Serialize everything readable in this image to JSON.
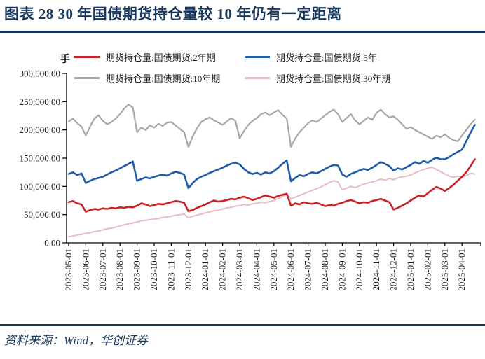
{
  "header": {
    "title": "图表 28  30 年国债期货持仓量较 10 年仍有一定距离"
  },
  "footer": {
    "source": "资料来源：Wind，华创证券"
  },
  "chart": {
    "unit_label": "手"
  },
  "colors": {
    "title_navy": "#17375C",
    "axis": "#000000"
  },
  "chart_data": {
    "type": "line",
    "title": "",
    "unit": "手",
    "xlabel": "",
    "ylabel": "",
    "grid": false,
    "legend_position": "top",
    "ylim": [
      0,
      300000
    ],
    "ytick_values": [
      0,
      50000,
      100000,
      150000,
      200000,
      250000,
      300000
    ],
    "ytick_labels": [
      "0.00",
      "50,000.00",
      "100,000.00",
      "150,000.00",
      "200,000.00",
      "250,000.00",
      "300,000.00"
    ],
    "x_tick_labels": [
      "2023-05-01",
      "2023-06-01",
      "2023-07-01",
      "2023-08-01",
      "2023-09-01",
      "2023-10-01",
      "2023-11-01",
      "2023-12-01",
      "2024-01-01",
      "2024-02-01",
      "2024-03-01",
      "2024-04-01",
      "2024-05-01",
      "2024-06-01",
      "2024-07-01",
      "2024-08-01",
      "2024-09-01",
      "2024-10-01",
      "2024-11-01",
      "2024-12-01",
      "2025-01-01",
      "2025-02-01",
      "2025-03-01",
      "2025-04-01"
    ],
    "points_per_month": 4,
    "series": [
      {
        "name": "期货持仓量:国债期货:2年期",
        "color": "#CB2026",
        "line_width": 2.6,
        "values": [
          72000,
          74000,
          70000,
          68000,
          55000,
          58000,
          60000,
          59000,
          61000,
          60000,
          62000,
          61000,
          63000,
          62000,
          64000,
          63000,
          66000,
          70000,
          68000,
          65000,
          67000,
          69000,
          68000,
          70000,
          72000,
          74000,
          73000,
          71000,
          56000,
          58000,
          62000,
          65000,
          68000,
          72000,
          75000,
          73000,
          74000,
          76000,
          78000,
          77000,
          80000,
          82000,
          79000,
          76000,
          78000,
          81000,
          84000,
          82000,
          80000,
          83000,
          85000,
          87000,
          66000,
          70000,
          68000,
          72000,
          70000,
          69000,
          71000,
          68000,
          65000,
          67000,
          66000,
          69000,
          71000,
          74000,
          76000,
          73000,
          70000,
          72000,
          71000,
          74000,
          76000,
          78000,
          75000,
          72000,
          59000,
          62000,
          66000,
          70000,
          75000,
          80000,
          84000,
          82000,
          88000,
          94000,
          99000,
          96000,
          92000,
          97000,
          103000,
          110000,
          117000,
          125000,
          136000,
          148000
        ]
      },
      {
        "name": "期货持仓量:国债期货:5年",
        "color": "#1F5CA9",
        "line_width": 2.6,
        "values": [
          122000,
          125000,
          120000,
          123000,
          106000,
          110000,
          113000,
          115000,
          117000,
          121000,
          125000,
          128000,
          132000,
          136000,
          140000,
          144000,
          110000,
          113000,
          116000,
          114000,
          117000,
          119000,
          121000,
          119000,
          123000,
          126000,
          124000,
          121000,
          97000,
          106000,
          113000,
          117000,
          120000,
          124000,
          127000,
          130000,
          133000,
          137000,
          140000,
          142000,
          139000,
          131000,
          125000,
          122000,
          124000,
          121000,
          125000,
          123000,
          127000,
          133000,
          140000,
          146000,
          109000,
          115000,
          120000,
          118000,
          122000,
          125000,
          123000,
          127000,
          131000,
          135000,
          138000,
          137000,
          121000,
          117000,
          122000,
          125000,
          128000,
          131000,
          129000,
          133000,
          138000,
          143000,
          140000,
          136000,
          128000,
          132000,
          130000,
          134000,
          138000,
          143000,
          140000,
          145000,
          142000,
          147000,
          151000,
          148000,
          148000,
          152000,
          157000,
          161000,
          165000,
          180000,
          195000,
          209000
        ]
      },
      {
        "name": "期货持仓量:国债期货:10年期",
        "color": "#A7A7A7",
        "line_width": 2.2,
        "values": [
          215000,
          220000,
          212000,
          206000,
          190000,
          206000,
          220000,
          226000,
          216000,
          210000,
          214000,
          220000,
          228000,
          238000,
          245000,
          240000,
          196000,
          204000,
          200000,
          208000,
          204000,
          211000,
          207000,
          213000,
          214000,
          208000,
          202000,
          196000,
          170000,
          188000,
          203000,
          214000,
          219000,
          222000,
          217000,
          213000,
          209000,
          215000,
          221000,
          216000,
          185000,
          198000,
          209000,
          216000,
          221000,
          228000,
          231000,
          226000,
          231000,
          235000,
          227000,
          220000,
          170000,
          185000,
          196000,
          204000,
          212000,
          217000,
          214000,
          220000,
          226000,
          232000,
          236000,
          228000,
          214000,
          221000,
          228000,
          217000,
          210000,
          216000,
          222000,
          218000,
          230000,
          236000,
          228000,
          222000,
          224000,
          218000,
          210000,
          202000,
          205000,
          200000,
          196000,
          192000,
          188000,
          184000,
          190000,
          187000,
          192000,
          186000,
          182000,
          180000,
          190000,
          200000,
          210000,
          218000
        ]
      },
      {
        "name": "期货持仓量:国债期货:30年期",
        "color": "#E8BCC0",
        "line_width": 2.0,
        "values": [
          11000,
          12000,
          14000,
          15000,
          17000,
          18000,
          20000,
          21000,
          23000,
          25000,
          26000,
          28000,
          30000,
          32000,
          34000,
          35000,
          37000,
          39000,
          40000,
          41000,
          42000,
          43000,
          45000,
          46000,
          47000,
          49000,
          50000,
          51000,
          44000,
          47000,
          49000,
          51000,
          53000,
          55000,
          57000,
          58000,
          60000,
          62000,
          63000,
          65000,
          66000,
          68000,
          67000,
          69000,
          70000,
          72000,
          71000,
          73000,
          75000,
          78000,
          82000,
          86000,
          78000,
          81000,
          84000,
          87000,
          90000,
          93000,
          96000,
          99000,
          103000,
          107000,
          110000,
          108000,
          94000,
          97000,
          100000,
          98000,
          101000,
          104000,
          106000,
          108000,
          110000,
          113000,
          111000,
          114000,
          112000,
          115000,
          117000,
          118000,
          120000,
          124000,
          127000,
          130000,
          132000,
          134000,
          130000,
          126000,
          122000,
          118000,
          116000,
          118000,
          116000,
          119000,
          123000,
          122000
        ]
      }
    ]
  }
}
